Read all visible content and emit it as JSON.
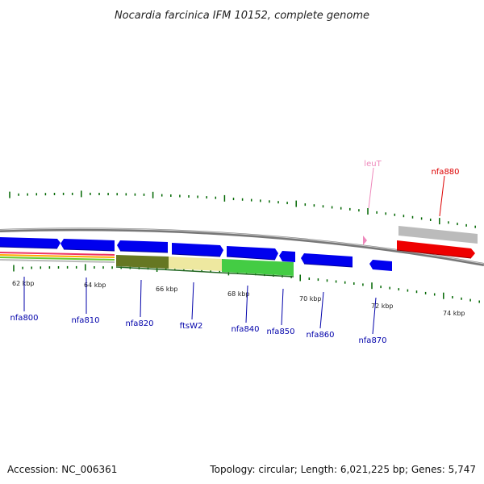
{
  "title": "Nocardia farcinica IFM 10152, complete genome",
  "footer": {
    "accession": "Accession: NC_006361",
    "summary": "Topology: circular; Length: 6,021,225 bp; Genes: 5,747"
  },
  "ticks": [
    {
      "label": "62 kbp"
    },
    {
      "label": "64 kbp"
    },
    {
      "label": "66 kbp"
    },
    {
      "label": "68 kbp"
    },
    {
      "label": "70 kbp"
    },
    {
      "label": "72 kbp"
    },
    {
      "label": "74 kbp"
    }
  ],
  "gene_labels": [
    {
      "name": "nfa800",
      "color": "#0000aa"
    },
    {
      "name": "nfa810",
      "color": "#0000aa"
    },
    {
      "name": "nfa820",
      "color": "#0000aa"
    },
    {
      "name": "ftsW2",
      "color": "#0000aa"
    },
    {
      "name": "nfa840",
      "color": "#0000aa"
    },
    {
      "name": "nfa850",
      "color": "#0000aa"
    },
    {
      "name": "nfa860",
      "color": "#0000aa"
    },
    {
      "name": "nfa870",
      "color": "#0000aa"
    },
    {
      "name": "leuT",
      "color": "#ee88bb"
    },
    {
      "name": "nfa880",
      "color": "#dd0000"
    }
  ],
  "colors": {
    "backbone": "#777777",
    "cds_forward": "#0000ee",
    "rna_gene": "#ee88bb",
    "highlight_gene": "#ee0000",
    "highlight_shadow": "#bbbbbb",
    "tick": "#006600"
  }
}
